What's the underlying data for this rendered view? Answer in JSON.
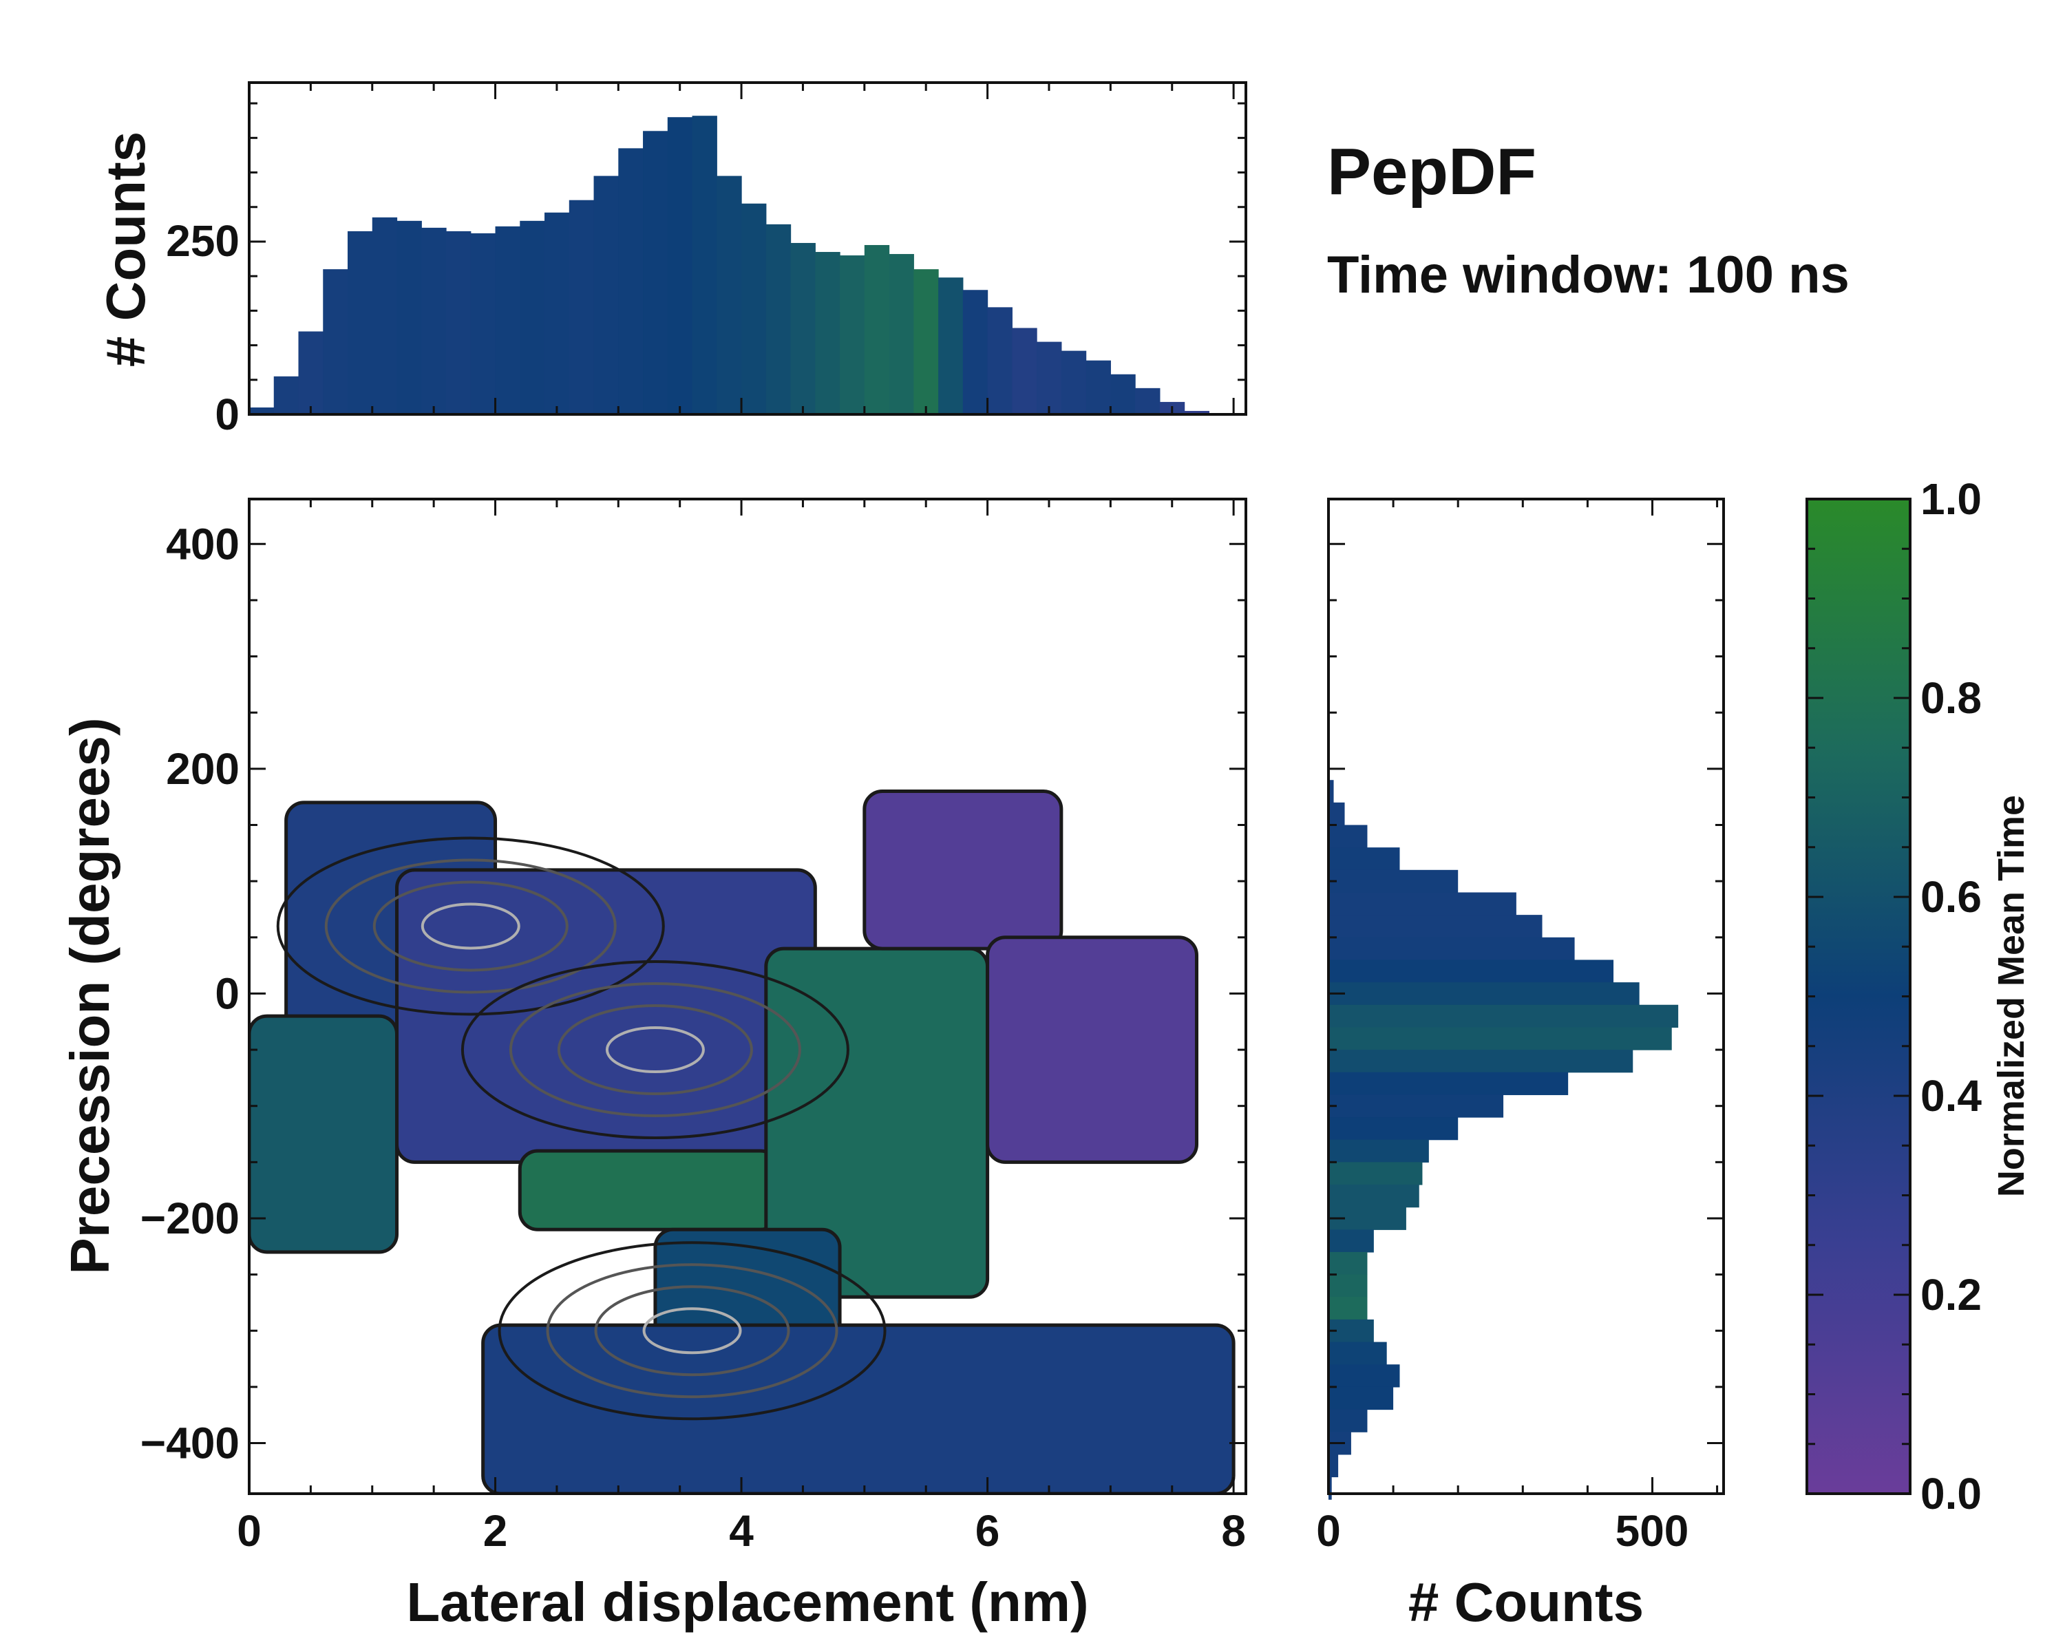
{
  "annotation": {
    "title": "PepDF",
    "subtitle": "Time window: 100 ns"
  },
  "colors": {
    "purple": "#6a3d9a",
    "blue": "#2d4a8c",
    "navy": "#0d3f78",
    "teal": "#1d6b5c",
    "green": "#2a8a2a",
    "contour_dark": "#1a1a1a",
    "contour_mid": "#555555",
    "contour_light": "#b0b0b0"
  },
  "chart_data": [
    {
      "id": "top-histogram",
      "type": "bar",
      "title": "",
      "xlabel": "",
      "ylabel": "# Counts",
      "xlim": [
        0,
        8.1
      ],
      "ylim": [
        0,
        480
      ],
      "yticks": [
        "0",
        "250"
      ],
      "ytick_values": [
        0,
        250
      ],
      "x": [
        0.1,
        0.3,
        0.5,
        0.7,
        0.9,
        1.1,
        1.3,
        1.5,
        1.7,
        1.9,
        2.1,
        2.3,
        2.5,
        2.7,
        2.9,
        3.1,
        3.3,
        3.5,
        3.7,
        3.9,
        4.1,
        4.3,
        4.5,
        4.7,
        4.9,
        5.1,
        5.3,
        5.5,
        5.7,
        5.9,
        6.1,
        6.3,
        6.5,
        6.7,
        6.9,
        7.1,
        7.3,
        7.5,
        7.7,
        7.9
      ],
      "values": [
        10,
        55,
        120,
        210,
        265,
        285,
        280,
        270,
        265,
        262,
        272,
        280,
        292,
        310,
        345,
        385,
        410,
        430,
        432,
        345,
        305,
        275,
        248,
        235,
        230,
        245,
        232,
        210,
        198,
        180,
        155,
        125,
        105,
        92,
        78,
        58,
        38,
        18,
        5,
        0
      ],
      "color_values": [
        0.45,
        0.44,
        0.43,
        0.45,
        0.46,
        0.46,
        0.47,
        0.46,
        0.45,
        0.46,
        0.47,
        0.48,
        0.47,
        0.46,
        0.47,
        0.48,
        0.49,
        0.5,
        0.52,
        0.54,
        0.55,
        0.58,
        0.62,
        0.66,
        0.7,
        0.74,
        0.72,
        0.8,
        0.6,
        0.46,
        0.42,
        0.38,
        0.4,
        0.42,
        0.44,
        0.45,
        0.42,
        0.35,
        0.3,
        0.3
      ]
    },
    {
      "id": "main-2d-histogram",
      "type": "heatmap",
      "title": "",
      "xlabel": "Lateral displacement (nm)",
      "ylabel": "Precession (degrees)",
      "xlim": [
        0,
        8.1
      ],
      "ylim": [
        -445,
        440
      ],
      "xticks": [
        "0",
        "2",
        "4",
        "6",
        "8"
      ],
      "xtick_values": [
        0,
        2,
        4,
        6,
        8
      ],
      "yticks": [
        "400",
        "200",
        "0",
        "−200",
        "−400"
      ],
      "ytick_values": [
        400,
        200,
        0,
        -200,
        -400
      ],
      "regions": [
        {
          "x_range": [
            0.3,
            2.0
          ],
          "y_range": [
            -110,
            170
          ],
          "mean_time": 0.4
        },
        {
          "x_range": [
            0.0,
            1.2
          ],
          "y_range": [
            -230,
            -20
          ],
          "mean_time": 0.65
        },
        {
          "x_range": [
            1.2,
            4.6
          ],
          "y_range": [
            -150,
            110
          ],
          "mean_time": 0.3
        },
        {
          "x_range": [
            2.2,
            4.3
          ],
          "y_range": [
            -210,
            -140
          ],
          "mean_time": 0.8
        },
        {
          "x_range": [
            4.2,
            6.0
          ],
          "y_range": [
            -270,
            40
          ],
          "mean_time": 0.75
        },
        {
          "x_range": [
            5.0,
            6.6
          ],
          "y_range": [
            40,
            180
          ],
          "mean_time": 0.12
        },
        {
          "x_range": [
            6.0,
            7.7
          ],
          "y_range": [
            -150,
            50
          ],
          "mean_time": 0.12
        },
        {
          "x_range": [
            3.3,
            4.8
          ],
          "y_range": [
            -350,
            -210
          ],
          "mean_time": 0.55
        },
        {
          "x_range": [
            1.9,
            8.0
          ],
          "y_range": [
            -445,
            -295
          ],
          "mean_time": 0.42
        }
      ],
      "density_peaks": [
        {
          "x": 1.8,
          "y": 60
        },
        {
          "x": 3.3,
          "y": -50
        },
        {
          "x": 3.6,
          "y": -300
        }
      ]
    },
    {
      "id": "right-histogram",
      "type": "bar",
      "orientation": "horizontal",
      "title": "",
      "xlabel": "# Counts",
      "ylabel": "",
      "xlim": [
        0,
        610
      ],
      "ylim": [
        -445,
        440
      ],
      "xticks": [
        "0",
        "500"
      ],
      "xtick_values": [
        0,
        500
      ],
      "y": [
        180,
        160,
        140,
        120,
        100,
        80,
        60,
        40,
        20,
        0,
        -20,
        -40,
        -60,
        -80,
        -100,
        -120,
        -140,
        -160,
        -180,
        -200,
        -220,
        -240,
        -260,
        -280,
        -300,
        -320,
        -340,
        -360,
        -380,
        -400,
        -420,
        -440
      ],
      "values": [
        8,
        25,
        60,
        110,
        200,
        290,
        330,
        380,
        440,
        480,
        540,
        530,
        470,
        370,
        270,
        200,
        155,
        145,
        140,
        120,
        70,
        60,
        60,
        60,
        70,
        90,
        110,
        100,
        60,
        35,
        15,
        5
      ],
      "color_values": [
        0.45,
        0.45,
        0.46,
        0.47,
        0.46,
        0.45,
        0.45,
        0.46,
        0.5,
        0.55,
        0.62,
        0.64,
        0.58,
        0.5,
        0.48,
        0.5,
        0.55,
        0.66,
        0.62,
        0.62,
        0.55,
        0.7,
        0.72,
        0.75,
        0.58,
        0.52,
        0.5,
        0.5,
        0.48,
        0.46,
        0.46,
        0.45
      ]
    },
    {
      "id": "colorbar",
      "type": "colorbar",
      "label": "Normalized Mean Time",
      "range": [
        0.0,
        1.0
      ],
      "ticks": [
        "0.0",
        "0.2",
        "0.4",
        "0.6",
        "0.8",
        "1.0"
      ],
      "tick_values": [
        0,
        0.2,
        0.4,
        0.6,
        0.8,
        1.0
      ]
    }
  ]
}
